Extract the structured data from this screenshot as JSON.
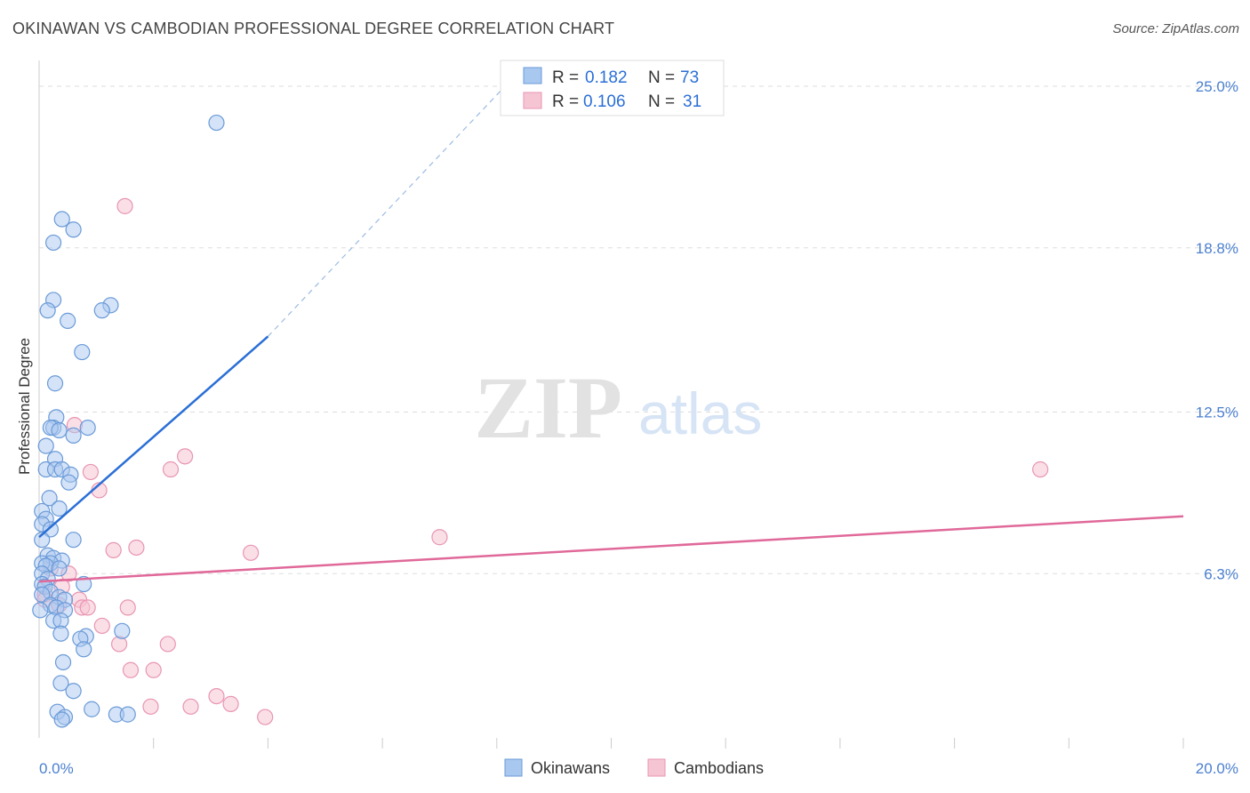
{
  "title": "OKINAWAN VS CAMBODIAN PROFESSIONAL DEGREE CORRELATION CHART",
  "source": "Source: ZipAtlas.com",
  "watermark": {
    "zip": "ZIP",
    "atlas": "atlas"
  },
  "colors": {
    "blue": "#2b6fd6",
    "blue_fill": "#a9c8f0",
    "blue_stroke": "#6a9ad8",
    "pink": "#e0699a",
    "pink_fill": "#f6c5d4",
    "pink_stroke": "#e895b2",
    "grid": "#dddddd",
    "axis_text": "#4a7fd0"
  },
  "legend": {
    "rows": [
      {
        "r_label": "R = ",
        "r_value": "0.182",
        "n_label": "N = ",
        "n_value": "73"
      },
      {
        "r_label": "R = ",
        "r_value": "0.106",
        "n_label": "N = ",
        "n_value": "31"
      }
    ]
  },
  "bottom_legend": [
    "Okinawans",
    "Cambodians"
  ],
  "chart_data": {
    "type": "scatter",
    "title": "OKINAWAN VS CAMBODIAN PROFESSIONAL DEGREE CORRELATION CHART",
    "xlabel": "",
    "ylabel": "Professional Degree",
    "xlim": [
      0,
      20
    ],
    "ylim": [
      0,
      25.5
    ],
    "x_tick_labels": [
      {
        "value": 0,
        "label": "0.0%"
      },
      {
        "value": 20,
        "label": "20.0%"
      }
    ],
    "y_ticks": [
      {
        "value": 6.3,
        "label": "6.3%"
      },
      {
        "value": 12.5,
        "label": "12.5%"
      },
      {
        "value": 18.8,
        "label": "18.8%"
      },
      {
        "value": 25.0,
        "label": "25.0%"
      }
    ],
    "series": [
      {
        "name": "Okinawans",
        "r": 0.182,
        "n": 73,
        "trend": {
          "x": [
            0.0,
            4.0
          ],
          "y": [
            7.7,
            15.4
          ],
          "dashed_to": {
            "x": 8.1,
            "y": 24.9
          }
        },
        "points": [
          [
            3.1,
            23.6
          ],
          [
            0.4,
            19.9
          ],
          [
            0.6,
            19.5
          ],
          [
            0.25,
            19.0
          ],
          [
            0.25,
            16.8
          ],
          [
            1.25,
            16.6
          ],
          [
            1.1,
            16.4
          ],
          [
            0.15,
            16.4
          ],
          [
            0.5,
            16.0
          ],
          [
            0.75,
            14.8
          ],
          [
            0.28,
            13.6
          ],
          [
            0.3,
            12.3
          ],
          [
            0.25,
            11.9
          ],
          [
            0.2,
            11.9
          ],
          [
            0.35,
            11.8
          ],
          [
            0.85,
            11.9
          ],
          [
            0.6,
            11.6
          ],
          [
            0.12,
            11.2
          ],
          [
            0.28,
            10.7
          ],
          [
            0.12,
            10.3
          ],
          [
            0.28,
            10.3
          ],
          [
            0.4,
            10.3
          ],
          [
            0.55,
            10.1
          ],
          [
            0.52,
            9.8
          ],
          [
            0.18,
            9.2
          ],
          [
            0.05,
            8.7
          ],
          [
            0.35,
            8.8
          ],
          [
            0.12,
            8.4
          ],
          [
            0.05,
            8.2
          ],
          [
            0.2,
            8.0
          ],
          [
            0.6,
            7.6
          ],
          [
            0.05,
            7.6
          ],
          [
            0.15,
            7.0
          ],
          [
            0.25,
            6.9
          ],
          [
            0.4,
            6.8
          ],
          [
            0.2,
            6.7
          ],
          [
            0.05,
            6.7
          ],
          [
            0.12,
            6.6
          ],
          [
            0.35,
            6.5
          ],
          [
            0.05,
            6.3
          ],
          [
            0.15,
            6.1
          ],
          [
            0.05,
            5.9
          ],
          [
            0.1,
            5.8
          ],
          [
            0.78,
            5.9
          ],
          [
            0.2,
            5.6
          ],
          [
            0.35,
            5.4
          ],
          [
            0.05,
            5.5
          ],
          [
            0.45,
            5.3
          ],
          [
            0.2,
            5.1
          ],
          [
            0.3,
            5.0
          ],
          [
            0.45,
            4.9
          ],
          [
            0.02,
            4.9
          ],
          [
            0.25,
            4.5
          ],
          [
            0.38,
            4.5
          ],
          [
            1.45,
            4.1
          ],
          [
            0.38,
            4.0
          ],
          [
            0.82,
            3.9
          ],
          [
            0.72,
            3.8
          ],
          [
            0.78,
            3.4
          ],
          [
            0.42,
            2.9
          ],
          [
            0.38,
            2.1
          ],
          [
            0.6,
            1.8
          ],
          [
            0.32,
            1.0
          ],
          [
            0.92,
            1.1
          ],
          [
            1.35,
            0.9
          ],
          [
            1.55,
            0.9
          ],
          [
            0.45,
            0.8
          ],
          [
            0.4,
            0.7
          ]
        ]
      },
      {
        "name": "Cambodians",
        "r": 0.106,
        "n": 31,
        "trend": {
          "x": [
            0.0,
            20.0
          ],
          "y": [
            6.0,
            8.5
          ]
        },
        "points": [
          [
            1.5,
            20.4
          ],
          [
            0.62,
            12.0
          ],
          [
            2.55,
            10.8
          ],
          [
            2.3,
            10.3
          ],
          [
            0.9,
            10.2
          ],
          [
            17.5,
            10.3
          ],
          [
            1.05,
            9.5
          ],
          [
            7.0,
            7.7
          ],
          [
            1.7,
            7.3
          ],
          [
            1.3,
            7.2
          ],
          [
            3.7,
            7.1
          ],
          [
            0.52,
            6.3
          ],
          [
            0.2,
            6.5
          ],
          [
            0.1,
            5.8
          ],
          [
            0.4,
            5.8
          ],
          [
            0.1,
            5.5
          ],
          [
            0.7,
            5.3
          ],
          [
            0.1,
            5.3
          ],
          [
            0.35,
            5.1
          ],
          [
            0.75,
            5.0
          ],
          [
            0.85,
            5.0
          ],
          [
            1.55,
            5.0
          ],
          [
            1.1,
            4.3
          ],
          [
            1.4,
            3.6
          ],
          [
            2.25,
            3.6
          ],
          [
            1.6,
            2.6
          ],
          [
            2.0,
            2.6
          ],
          [
            3.1,
            1.6
          ],
          [
            1.95,
            1.2
          ],
          [
            2.65,
            1.2
          ],
          [
            3.35,
            1.3
          ],
          [
            3.95,
            0.8
          ]
        ]
      }
    ]
  }
}
